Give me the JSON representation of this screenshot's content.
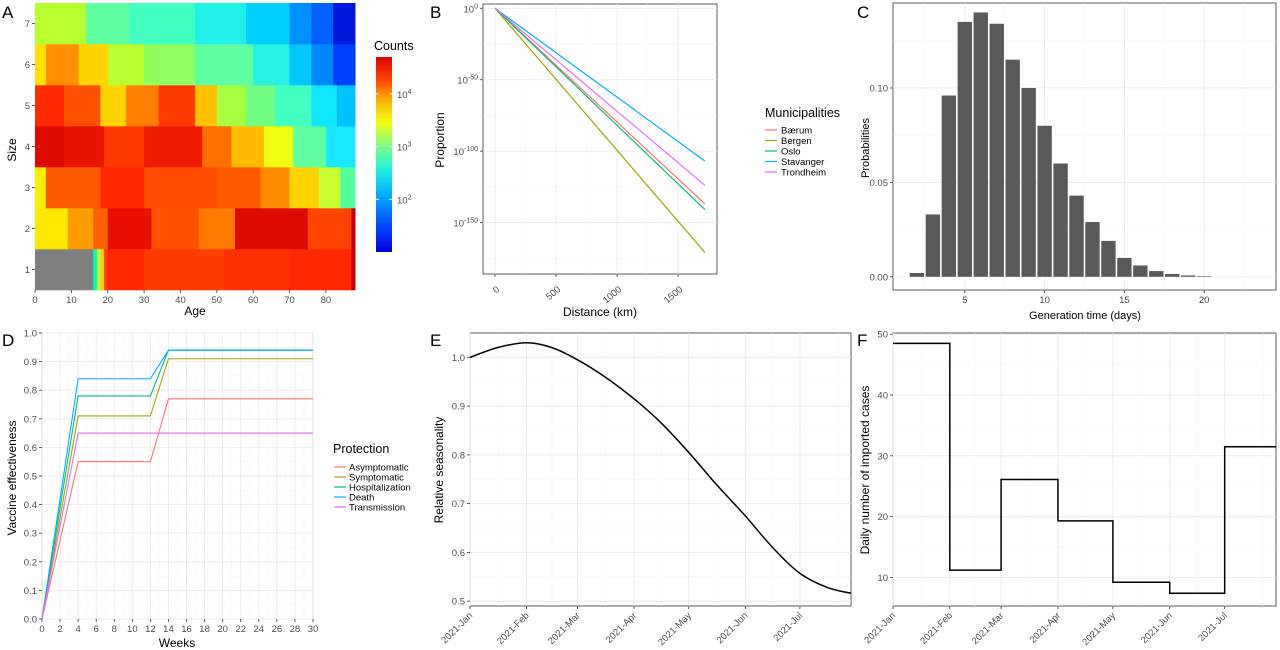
{
  "panels": {
    "A": {
      "letter": "A"
    },
    "B": {
      "letter": "B"
    },
    "C": {
      "letter": "C"
    },
    "D": {
      "letter": "D"
    },
    "E": {
      "letter": "E"
    },
    "F": {
      "letter": "F"
    }
  },
  "chart_data": [
    {
      "id": "A",
      "type": "heatmap",
      "xlabel": "Age",
      "ylabel": "Size",
      "x_ticks": [
        0,
        10,
        20,
        30,
        40,
        50,
        60,
        70,
        80
      ],
      "y_ticks": [
        1,
        2,
        3,
        4,
        5,
        6,
        7
      ],
      "xlim": [
        0,
        88
      ],
      "legend": {
        "title": "Counts",
        "scale": "log10",
        "range": [
          10,
          50000
        ],
        "tick_labels": [
          "10^2",
          "10^3",
          "10^4"
        ],
        "tick_values": [
          100,
          1000,
          10000
        ]
      },
      "na_color": "#808080",
      "rows": [
        {
          "size": 1,
          "segments": [
            [
              0,
              16,
              null
            ],
            [
              16,
              17,
              "#00ffb0"
            ],
            [
              17,
              18,
              "#c0ff40"
            ],
            [
              18,
              19,
              "#ffd000"
            ],
            [
              19,
              20,
              "#ff4000"
            ],
            [
              20,
              30,
              "#ff2a00"
            ],
            [
              30,
              52,
              "#ff3c00"
            ],
            [
              52,
              70,
              "#ff3000"
            ],
            [
              70,
              87,
              "#ff2800"
            ],
            [
              87,
              88,
              "#cc0000"
            ]
          ]
        },
        {
          "size": 2,
          "segments": [
            [
              0,
              9,
              "#ffe800"
            ],
            [
              9,
              16,
              "#ff9c00"
            ],
            [
              16,
              20,
              "#ff6000"
            ],
            [
              20,
              32,
              "#e81000"
            ],
            [
              32,
              45,
              "#ff5000"
            ],
            [
              45,
              55,
              "#ff7a00"
            ],
            [
              55,
              75,
              "#dd0a00"
            ],
            [
              75,
              87,
              "#ff4400"
            ],
            [
              87,
              88,
              "#cc0000"
            ]
          ]
        },
        {
          "size": 3,
          "segments": [
            [
              0,
              3,
              "#ffee00"
            ],
            [
              3,
              18,
              "#ff5a00"
            ],
            [
              18,
              30,
              "#ff2a00"
            ],
            [
              30,
              50,
              "#ff4a00"
            ],
            [
              50,
              62,
              "#ff5a00"
            ],
            [
              62,
              70,
              "#ff8c00"
            ],
            [
              70,
              78,
              "#ffd200"
            ],
            [
              78,
              84,
              "#c8ff30"
            ],
            [
              84,
              88,
              "#50ffa0"
            ]
          ]
        },
        {
          "size": 4,
          "segments": [
            [
              0,
              8,
              "#dd0a00"
            ],
            [
              8,
              19,
              "#e81400"
            ],
            [
              19,
              30,
              "#ff3a00"
            ],
            [
              30,
              46,
              "#ee1a00"
            ],
            [
              46,
              54,
              "#ff7000"
            ],
            [
              54,
              63,
              "#ffbc00"
            ],
            [
              63,
              71,
              "#f0ff10"
            ],
            [
              71,
              80,
              "#60ffa0"
            ],
            [
              80,
              88,
              "#18e8ff"
            ]
          ]
        },
        {
          "size": 5,
          "segments": [
            [
              0,
              8,
              "#ff2a00"
            ],
            [
              8,
              18,
              "#ff5000"
            ],
            [
              18,
              25,
              "#ffd400"
            ],
            [
              25,
              34,
              "#ff8000"
            ],
            [
              34,
              44,
              "#ff3a00"
            ],
            [
              44,
              50,
              "#ffc000"
            ],
            [
              50,
              58,
              "#a8ff40"
            ],
            [
              58,
              66,
              "#70ff80"
            ],
            [
              66,
              76,
              "#40ffc0"
            ],
            [
              76,
              83,
              "#10e8ff"
            ],
            [
              83,
              88,
              "#00c0ff"
            ]
          ]
        },
        {
          "size": 6,
          "segments": [
            [
              0,
              3,
              "#ffe000"
            ],
            [
              3,
              12,
              "#ff9000"
            ],
            [
              12,
              20,
              "#ffd600"
            ],
            [
              20,
              30,
              "#bcff30"
            ],
            [
              30,
              44,
              "#90ff60"
            ],
            [
              44,
              60,
              "#60ffa0"
            ],
            [
              60,
              70,
              "#28f0e0"
            ],
            [
              70,
              76,
              "#00c8ff"
            ],
            [
              76,
              82,
              "#0088ff"
            ],
            [
              82,
              88,
              "#0040ff"
            ]
          ]
        },
        {
          "size": 7,
          "segments": [
            [
              0,
              14,
              "#b8ff30"
            ],
            [
              14,
              26,
              "#60ffa0"
            ],
            [
              26,
              44,
              "#40ffc0"
            ],
            [
              44,
              58,
              "#20f0e8"
            ],
            [
              58,
              70,
              "#00d0ff"
            ],
            [
              70,
              76,
              "#0090ff"
            ],
            [
              76,
              82,
              "#0060ff"
            ],
            [
              82,
              88,
              "#0018dd"
            ]
          ]
        }
      ]
    },
    {
      "id": "B",
      "type": "line",
      "xlabel": "Distance (km)",
      "ylabel": "Proportion",
      "y_scale": "log10",
      "xlim": [
        0,
        1720
      ],
      "ylim_log10": [
        -186,
        3
      ],
      "x_ticks": [
        0,
        500,
        1000,
        1500
      ],
      "y_tick_exponents": [
        0,
        -50,
        -100,
        -150
      ],
      "legend_title": "Municipalities",
      "series": [
        {
          "name": "Bærum",
          "color": "#f8766d",
          "x": [
            0,
            1720
          ],
          "log10_y": [
            0,
            -137
          ]
        },
        {
          "name": "Bergen",
          "color": "#a3a500",
          "x": [
            0,
            1720
          ],
          "log10_y": [
            0,
            -171
          ]
        },
        {
          "name": "Oslo",
          "color": "#00bf7d",
          "x": [
            0,
            1720
          ],
          "log10_y": [
            0,
            -141
          ]
        },
        {
          "name": "Stavanger",
          "color": "#00b0f6",
          "x": [
            0,
            1720
          ],
          "log10_y": [
            0,
            -107
          ]
        },
        {
          "name": "Trondheim",
          "color": "#e76bf3",
          "x": [
            0,
            1720
          ],
          "log10_y": [
            0,
            -124
          ]
        }
      ]
    },
    {
      "id": "C",
      "type": "bar",
      "xlabel": "Generation time (days)",
      "ylabel": "Probabilities",
      "xlim": [
        0.5,
        24.5
      ],
      "ylim": [
        -0.007,
        0.145
      ],
      "x_ticks": [
        5,
        10,
        15,
        20
      ],
      "y_ticks": [
        0,
        0.05,
        0.1
      ],
      "y_tick_labels": [
        "0.00",
        "0.05",
        "0.10"
      ],
      "color": "#595959",
      "categories": [
        2,
        3,
        4,
        5,
        6,
        7,
        8,
        9,
        10,
        11,
        12,
        13,
        14,
        15,
        16,
        17,
        18,
        19,
        20
      ],
      "values": [
        0.002,
        0.033,
        0.096,
        0.135,
        0.14,
        0.134,
        0.115,
        0.1,
        0.08,
        0.06,
        0.043,
        0.029,
        0.019,
        0.01,
        0.006,
        0.003,
        0.0015,
        0.0007,
        0.0003
      ]
    },
    {
      "id": "D",
      "type": "line",
      "xlabel": "Weeks",
      "ylabel": "Vaccine effectiveness",
      "xlim": [
        0,
        30
      ],
      "ylim": [
        0,
        1
      ],
      "x_ticks": [
        0,
        2,
        4,
        6,
        8,
        10,
        12,
        14,
        16,
        18,
        20,
        22,
        24,
        26,
        28,
        30
      ],
      "y_ticks": [
        0,
        0.1,
        0.2,
        0.3,
        0.4,
        0.5,
        0.6,
        0.7,
        0.8,
        0.9,
        1
      ],
      "y_tick_labels": [
        "0.0",
        "0.1",
        "0.2",
        "0.3",
        "0.4",
        "0.5",
        "0.6",
        "0.7",
        "0.8",
        "0.9",
        "1.0"
      ],
      "legend_title": "Protection",
      "series": [
        {
          "name": "Asymptomatic",
          "color": "#f8766d",
          "x": [
            0,
            4,
            12,
            14,
            30
          ],
          "y": [
            0,
            0.55,
            0.55,
            0.77,
            0.77
          ]
        },
        {
          "name": "Symptomatic",
          "color": "#a3a500",
          "x": [
            0,
            4,
            12,
            14,
            30
          ],
          "y": [
            0,
            0.71,
            0.71,
            0.91,
            0.91
          ]
        },
        {
          "name": "Hospitalization",
          "color": "#00bf7d",
          "x": [
            0,
            4,
            12,
            14,
            30
          ],
          "y": [
            0,
            0.78,
            0.78,
            0.94,
            0.94
          ]
        },
        {
          "name": "Death",
          "color": "#00b0f6",
          "x": [
            0,
            4,
            12,
            14,
            30
          ],
          "y": [
            0,
            0.84,
            0.84,
            0.94,
            0.94
          ]
        },
        {
          "name": "Transmission",
          "color": "#e76bf3",
          "x": [
            0,
            4,
            30
          ],
          "y": [
            0,
            0.65,
            0.65
          ]
        }
      ]
    },
    {
      "id": "E",
      "type": "line",
      "xlabel": "",
      "ylabel": "Relative seasonality",
      "xlim_days": [
        0,
        209
      ],
      "ylim": [
        0.49,
        1.05
      ],
      "x_ticks_days": [
        0,
        31,
        59,
        90,
        120,
        151,
        181
      ],
      "x_tick_labels": [
        "2021-Jan",
        "2021-Feb",
        "2021-Mar",
        "2021-Apr",
        "2021-May",
        "2021-Jun",
        "2021-Jul"
      ],
      "y_ticks": [
        0.5,
        0.6,
        0.7,
        0.8,
        0.9,
        1
      ],
      "y_tick_labels": [
        "0.5",
        "0.6",
        "0.7",
        "0.8",
        "0.9",
        "1.0"
      ],
      "series": [
        {
          "color": "#000000",
          "x": [
            "2021-01-01",
            "2021-01-16",
            "2021-02-01",
            "2021-02-15",
            "2021-03-01",
            "2021-03-16",
            "2021-04-01",
            "2021-04-16",
            "2021-05-01",
            "2021-05-16",
            "2021-06-01",
            "2021-06-16",
            "2021-07-01",
            "2021-07-16",
            "2021-07-29"
          ],
          "y": [
            1.0,
            1.02,
            1.03,
            1.02,
            0.995,
            0.96,
            0.915,
            0.865,
            0.805,
            0.74,
            0.675,
            0.61,
            0.557,
            0.528,
            0.516
          ]
        }
      ]
    },
    {
      "id": "F",
      "type": "line",
      "xlabel": "",
      "ylabel": "Daily number of imported cases",
      "xlim_days": [
        0,
        209
      ],
      "ylim": [
        5.3,
        50.2
      ],
      "x_ticks_days": [
        0,
        31,
        59,
        90,
        120,
        151,
        181
      ],
      "x_tick_labels": [
        "2021-Jan",
        "2021-Feb",
        "2021-Mar",
        "2021-Apr",
        "2021-May",
        "2021-Jun",
        "2021-Jul"
      ],
      "y_ticks": [
        10,
        20,
        30,
        40,
        50
      ],
      "step": true,
      "series": [
        {
          "color": "#000000",
          "x": [
            "2021-01-01",
            "2021-02-01",
            "2021-03-01",
            "2021-04-01",
            "2021-05-01",
            "2021-06-01",
            "2021-07-01",
            "2021-07-29"
          ],
          "y": [
            48.5,
            11.2,
            26.1,
            19.3,
            9.2,
            7.4,
            31.5,
            31.5
          ]
        }
      ]
    }
  ]
}
